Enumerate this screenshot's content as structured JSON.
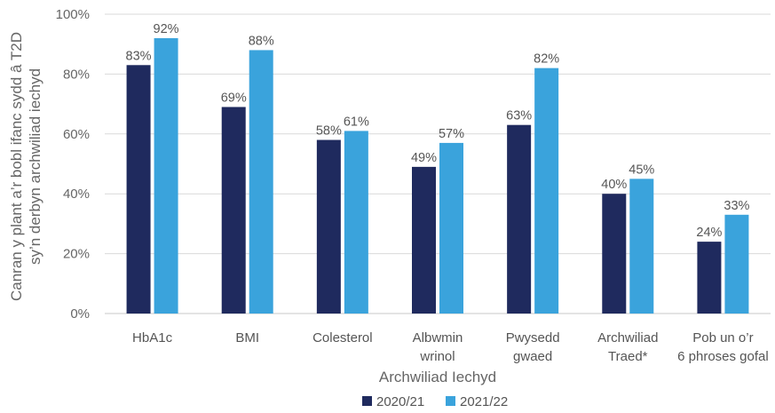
{
  "chart_data": {
    "type": "bar",
    "categories": [
      [
        "HbA1c"
      ],
      [
        "BMI"
      ],
      [
        "Colesterol"
      ],
      [
        "Albwmin",
        "wrinol"
      ],
      [
        "Pwysedd",
        "gwaed"
      ],
      [
        "Archwiliad",
        "Traed*"
      ],
      [
        "Pob un o’r",
        "6 phroses gofal"
      ]
    ],
    "series": [
      {
        "name": "2020/21",
        "color": "#1f2a5e",
        "values": [
          83,
          69,
          58,
          49,
          63,
          40,
          24
        ]
      },
      {
        "name": "2021/22",
        "color": "#3aa3dc",
        "values": [
          92,
          88,
          61,
          57,
          82,
          45,
          33
        ]
      }
    ],
    "value_suffix": "%",
    "ylim": [
      0,
      100
    ],
    "yticks": [
      0,
      20,
      40,
      60,
      80,
      100
    ],
    "ytick_labels": [
      "0%",
      "20%",
      "40%",
      "60%",
      "80%",
      "100%"
    ],
    "ylabel": [
      "Canran y plant a’r bobl ifanc sydd â T2D",
      "sy’n derbyn archwiliad iechyd"
    ],
    "xlabel": "Archwiliad Iechyd",
    "legend_position": "bottom-center",
    "grid": "horizontal"
  }
}
